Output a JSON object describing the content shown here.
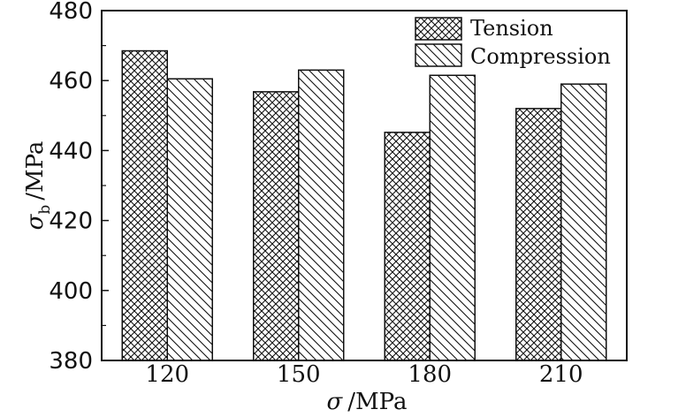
{
  "chart_data": {
    "type": "bar",
    "categories": [
      "120",
      "150",
      "180",
      "210"
    ],
    "series": [
      {
        "name": "Tension",
        "values": [
          468.5,
          456.8,
          445.2,
          452.0
        ],
        "pattern": "crosshatch"
      },
      {
        "name": "Compression",
        "values": [
          460.5,
          463.0,
          461.5,
          459.0
        ],
        "pattern": "diagonal"
      }
    ],
    "xlabel": {
      "symbol": "σ",
      "unit": "/MPa"
    },
    "ylabel": {
      "symbol": "σ",
      "subscript": "b",
      "unit": "/MPa"
    },
    "ylim": [
      380,
      480
    ],
    "yticks": [
      "380",
      "400",
      "420",
      "440",
      "460",
      "480"
    ],
    "grid": false,
    "legend_position": "top-right"
  }
}
